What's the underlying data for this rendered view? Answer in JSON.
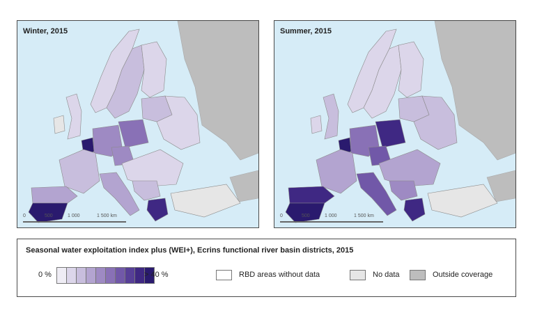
{
  "panels": [
    {
      "title": "Winter, 2015",
      "regions": {
        "scandinavia": 2,
        "norway": 1,
        "finland": 1,
        "baltics": 2,
        "uk": 1,
        "ireland": 0,
        "france": 2,
        "benelux": 9,
        "germany": 4,
        "poland": 5,
        "czech": 4,
        "east": 1,
        "danube": 1,
        "iberia_north": 3,
        "iberia_south": 9,
        "italy": 3,
        "balkans": 2,
        "greece": 8,
        "turkey_cyprus": 0
      },
      "scalebar": {
        "labels": [
          "0",
          "500",
          "1 000",
          "1 500 km"
        ]
      }
    },
    {
      "title": "Summer, 2015",
      "regions": {
        "scandinavia": 1,
        "norway": 1,
        "finland": 1,
        "baltics": 2,
        "uk": 2,
        "ireland": 1,
        "france": 3,
        "benelux": 9,
        "germany": 5,
        "poland": 8,
        "czech": 6,
        "east": 2,
        "danube": 3,
        "iberia_north": 8,
        "iberia_south": 9,
        "italy": 6,
        "balkans": 4,
        "greece": 8,
        "turkey_cyprus": 0
      },
      "scalebar": {
        "labels": [
          "0",
          "500",
          "1 000",
          "1 500 km"
        ]
      }
    }
  ],
  "legend": {
    "title": "Seasonal water exploitation index plus (WEI+), Ecrins functional river basin districts, 2015",
    "min_label": "0 %",
    "max_label": "> 40 %",
    "ramp_colors": [
      "#efedf5",
      "#dcd6ea",
      "#c8bedd",
      "#b3a4d0",
      "#9e8ac3",
      "#8971b6",
      "#7158a8",
      "#573f97",
      "#3f2883",
      "#2a1a6e"
    ],
    "items": [
      {
        "label": "RBD areas without data",
        "color": "#ffffff"
      },
      {
        "label": "No data",
        "color": "#e6e6e6"
      },
      {
        "label": "Outside coverage",
        "color": "#bdbdbd"
      }
    ]
  },
  "colors": {
    "sea": "#d6ecf7",
    "outside": "#bdbdbd",
    "nodata": "#e6e6e6",
    "border": "#8a8a8a"
  }
}
